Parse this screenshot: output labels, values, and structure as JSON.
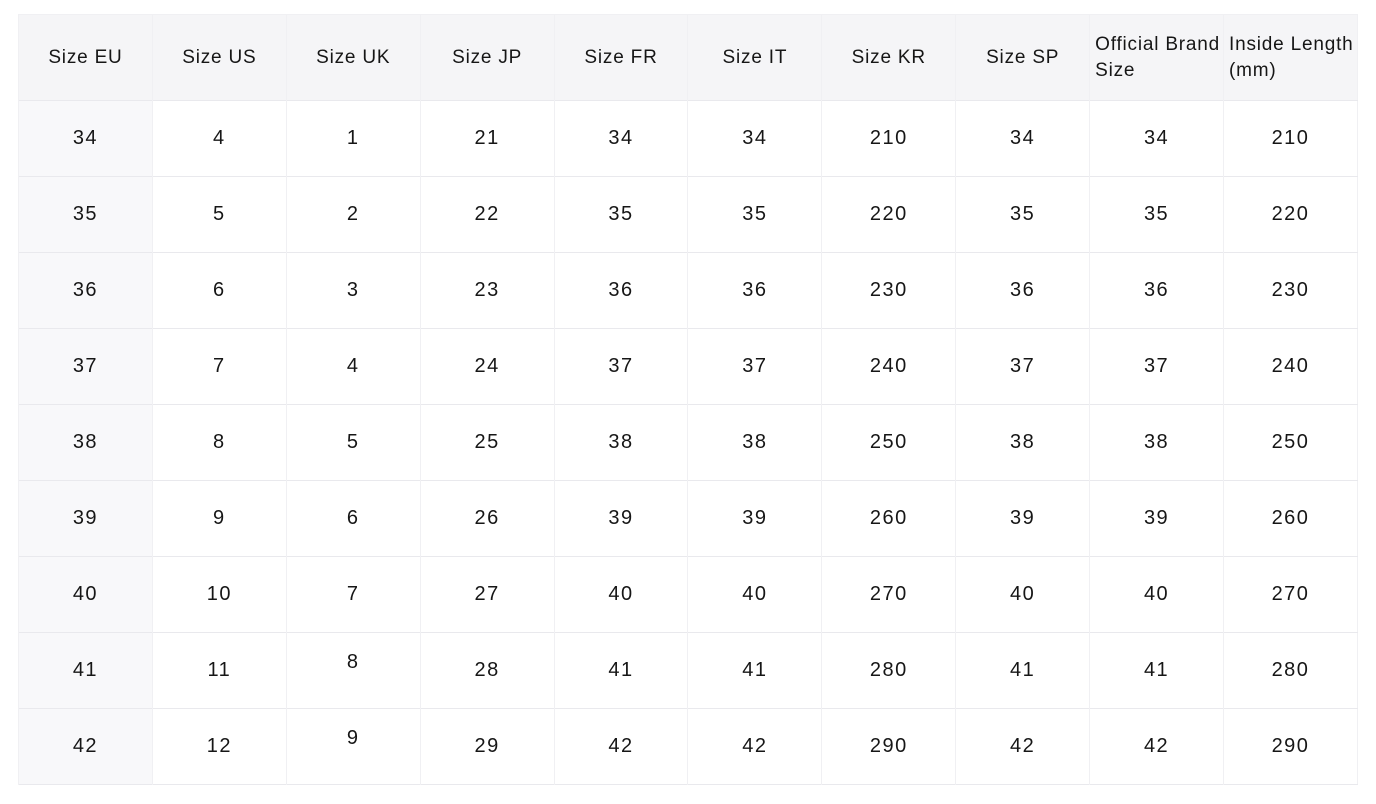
{
  "colors": {
    "header_bg": "#f5f5f7",
    "first_col_bg": "#f8f8fa",
    "hline": "#e9e9ed",
    "vline": "#f0f0f3",
    "text": "#161616"
  },
  "chart_data": {
    "type": "table",
    "columns": [
      "Size EU",
      "Size US",
      "Size UK",
      "Size JP",
      "Size FR",
      "Size IT",
      "Size KR",
      "Size SP",
      "Official Brand Size",
      "Inside Length (mm)"
    ],
    "rows": [
      [
        "34",
        "4",
        "1",
        "21",
        "34",
        "34",
        "210",
        "34",
        "34",
        "210"
      ],
      [
        "35",
        "5",
        "2",
        "22",
        "35",
        "35",
        "220",
        "35",
        "35",
        "220"
      ],
      [
        "36",
        "6",
        "3",
        "23",
        "36",
        "36",
        "230",
        "36",
        "36",
        "230"
      ],
      [
        "37",
        "7",
        "4",
        "24",
        "37",
        "37",
        "240",
        "37",
        "37",
        "240"
      ],
      [
        "38",
        "8",
        "5",
        "25",
        "38",
        "38",
        "250",
        "38",
        "38",
        "250"
      ],
      [
        "39",
        "9",
        "6",
        "26",
        "39",
        "39",
        "260",
        "39",
        "39",
        "260"
      ],
      [
        "40",
        "10",
        "7",
        "27",
        "40",
        "40",
        "270",
        "40",
        "40",
        "270"
      ],
      [
        "41",
        "11",
        "8",
        "28",
        "41",
        "41",
        "280",
        "41",
        "41",
        "280"
      ],
      [
        "42",
        "12",
        "9",
        "29",
        "42",
        "42",
        "290",
        "42",
        "42",
        "290"
      ]
    ],
    "layout": {
      "grid": true,
      "header_position": "top",
      "left_aligned_header_columns": [
        8,
        9
      ],
      "raised_cells": [
        [
          7,
          2
        ],
        [
          8,
          2
        ]
      ]
    }
  }
}
